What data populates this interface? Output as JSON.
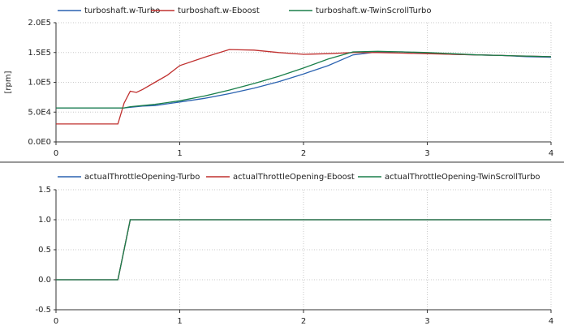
{
  "chart_data": [
    {
      "type": "line",
      "ylabel": "[rpm]",
      "grid": true,
      "x": [
        0,
        0.5,
        0.55,
        0.6,
        0.65,
        0.7,
        0.8,
        0.9,
        1.0,
        1.2,
        1.4,
        1.6,
        1.8,
        2.0,
        2.2,
        2.4,
        2.6,
        2.8,
        3.0,
        3.2,
        3.4,
        3.6,
        3.8,
        4.0
      ],
      "xlim": [
        0,
        4
      ],
      "xticks": [
        0,
        1,
        2,
        3,
        4
      ],
      "ylim": [
        0,
        200000
      ],
      "yticks": [
        {
          "value": 0,
          "label": "0.0E0"
        },
        {
          "value": 50000,
          "label": "5.0E4"
        },
        {
          "value": 100000,
          "label": "1.0E5"
        },
        {
          "value": 150000,
          "label": "1.5E5"
        },
        {
          "value": 200000,
          "label": "2.0E5"
        }
      ],
      "series": [
        {
          "name": "turboshaft.w-Turbo",
          "color": "#2a62b0",
          "values": [
            57000,
            57000,
            57000,
            58000,
            59000,
            60000,
            61000,
            64000,
            67000,
            73000,
            81000,
            90000,
            101000,
            114000,
            128000,
            146000,
            151000,
            151000,
            149000,
            147000,
            146000,
            145000,
            143000,
            142000
          ]
        },
        {
          "name": "turboshaft.w-Eboost",
          "color": "#c0302f",
          "values": [
            30000,
            30000,
            65000,
            85000,
            83000,
            88000,
            100000,
            112000,
            128000,
            142000,
            155000,
            154000,
            150000,
            147000,
            148000,
            150000,
            150000,
            149000,
            148000,
            147000,
            146000,
            145000,
            144000,
            143000
          ]
        },
        {
          "name": "turboshaft.w-TwinScrollTurbo",
          "color": "#1a7f4a",
          "values": [
            57000,
            57000,
            57000,
            59000,
            60000,
            61000,
            63000,
            66000,
            69000,
            77000,
            87000,
            98000,
            110000,
            124000,
            139000,
            151000,
            152000,
            151000,
            150000,
            148000,
            146000,
            145000,
            144000,
            143000
          ]
        }
      ]
    },
    {
      "type": "line",
      "grid": true,
      "x": [
        0,
        0.5,
        0.6,
        4
      ],
      "xlim": [
        0,
        4
      ],
      "xticks": [
        0,
        1,
        2,
        3,
        4
      ],
      "ylim": [
        -0.5,
        1.5
      ],
      "yticks": [
        -0.5,
        {
          "value": 0,
          "label": "0.0"
        },
        0.5,
        {
          "value": 1,
          "label": "1.0"
        },
        1.5
      ],
      "series": [
        {
          "name": "actualThrottleOpening-Turbo",
          "color": "#2a62b0",
          "values": [
            0,
            0,
            1,
            1
          ]
        },
        {
          "name": "actualThrottleOpening-Eboost",
          "color": "#c0302f",
          "values": [
            0,
            0,
            1,
            1
          ]
        },
        {
          "name": "actualThrottleOpening-TwinScrollTurbo",
          "color": "#1a7f4a",
          "values": [
            0,
            0,
            1,
            1
          ]
        }
      ]
    }
  ]
}
